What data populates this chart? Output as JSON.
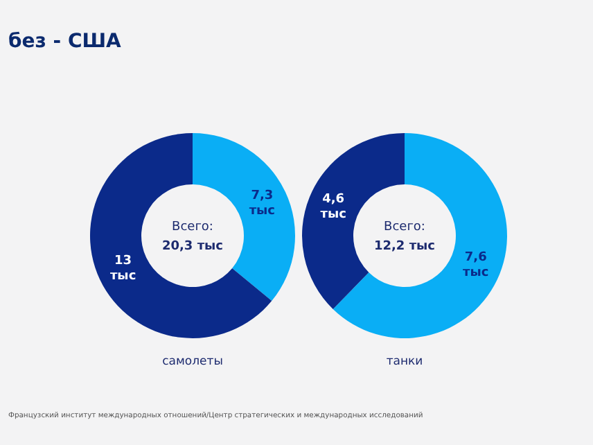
{
  "chart_data": [
    {
      "type": "donut",
      "title": "без - США",
      "xlabel": "самолеты",
      "categories": [
        null,
        null
      ],
      "values": [
        7.3,
        13
      ],
      "colors": [
        "#0aaef5",
        "#0b2a8a"
      ],
      "value_labels": [
        "7,3 тыс",
        "13 тыс"
      ],
      "annotations": [
        "Всего:",
        "20,3 тыс",
        "Французский институт международных отношений/Центр стратегических и международных исследований"
      ]
    },
    {
      "type": "donut",
      "xlabel": "танки",
      "categories": [
        null,
        null
      ],
      "values": [
        7.6,
        4.6
      ],
      "colors": [
        "#0aaef5",
        "#0b2a8a"
      ],
      "value_labels": [
        "7,6 тыс",
        "4,6 тыс"
      ],
      "annotations": [
        "Всего:",
        "12,2 тыс"
      ]
    }
  ]
}
